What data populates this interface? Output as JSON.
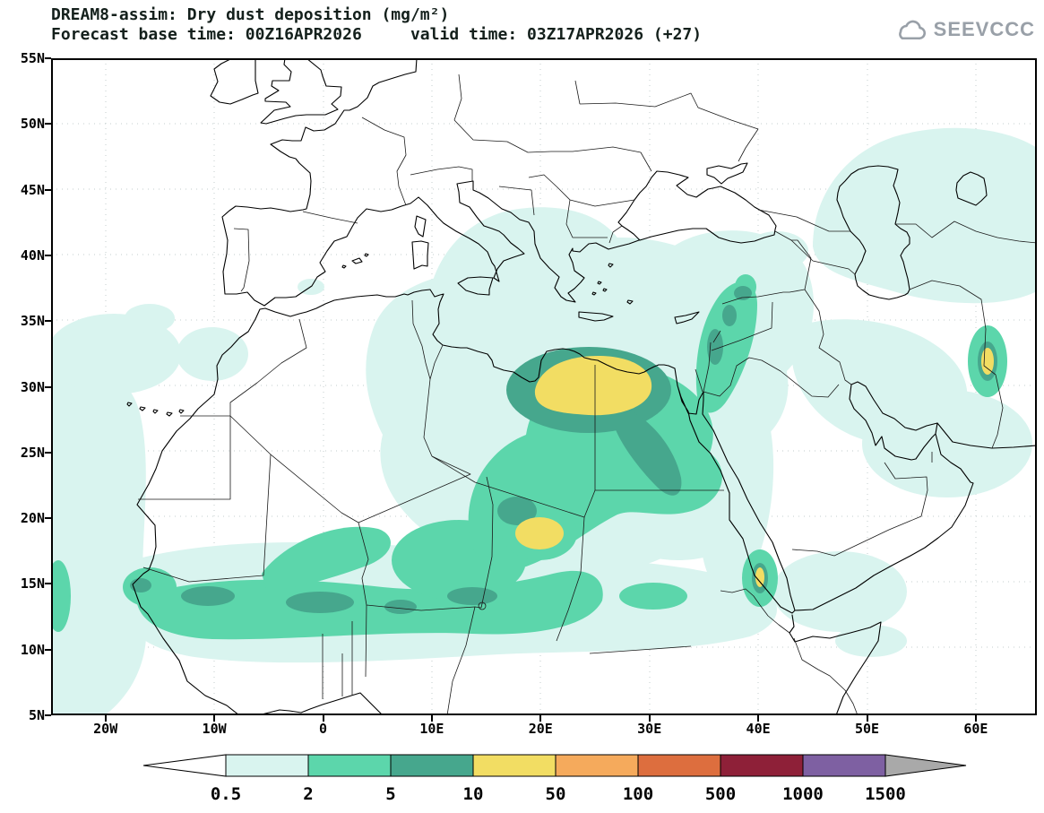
{
  "header": {
    "title": "DREAM8-assim: Dry dust deposition (mg/m²)",
    "subtitle": "Forecast base time: 00Z16APR2026     valid time: 03Z17APR2026 (+27)"
  },
  "logo": {
    "text": "SEEVCCC",
    "icon": "cloud-icon",
    "color": "#99a0a8"
  },
  "map": {
    "lat_labels": [
      "55N",
      "50N",
      "45N",
      "40N",
      "35N",
      "30N",
      "25N",
      "20N",
      "15N",
      "10N",
      "5N"
    ],
    "lon_labels": [
      "20W",
      "10W",
      "0",
      "10E",
      "20E",
      "30E",
      "40E",
      "50E",
      "60E"
    ]
  },
  "colorbar": {
    "tick_labels": [
      "0.5",
      "2",
      "5",
      "10",
      "50",
      "100",
      "500",
      "1000",
      "1500"
    ],
    "below_color": "#ffffff",
    "above_color": "#a9a9a9",
    "segment_colors": [
      "#d9f4ef",
      "#5cd6ab",
      "#46a78d",
      "#f2dd63",
      "#f5aa5c",
      "#dd6e3e",
      "#8e2038",
      "#7e60a2"
    ]
  },
  "chart_data": {
    "type": "filled-contour-map",
    "title": "DREAM8-assim: Dry dust deposition (mg/m²)",
    "units": "mg/m²",
    "levels": [
      0.5,
      2,
      5,
      10,
      50,
      100,
      500,
      1000,
      1500
    ],
    "level_colors": [
      "#ffffff",
      "#d9f4ef",
      "#5cd6ab",
      "#46a78d",
      "#f2dd63",
      "#f5aa5c",
      "#dd6e3e",
      "#8e2038",
      "#7e60a2",
      "#a9a9a9"
    ],
    "lat_ticks": [
      "55N",
      "50N",
      "45N",
      "40N",
      "35N",
      "30N",
      "25N",
      "20N",
      "15N",
      "10N",
      "5N"
    ],
    "lon_ticks": [
      "20W",
      "10W",
      "0",
      "10E",
      "20E",
      "30E",
      "40E",
      "50E",
      "60E"
    ],
    "base_time": "00Z16APR2026",
    "valid_time": "03Z17APR2026 (+27)"
  }
}
